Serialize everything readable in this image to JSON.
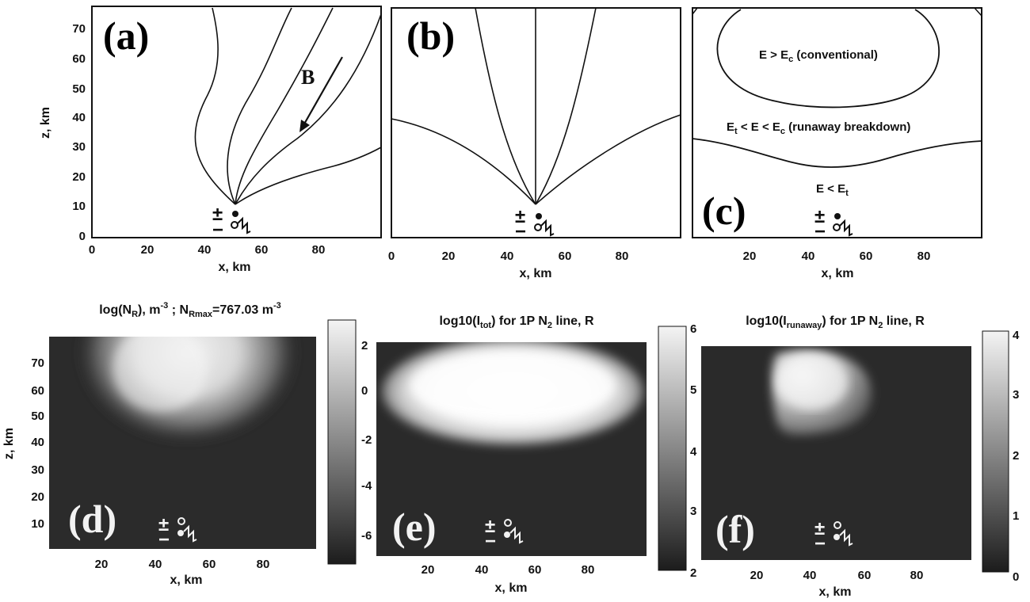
{
  "panels": {
    "a": {
      "label": "(a)",
      "field_label": "B"
    },
    "b": {
      "label": "(b)"
    },
    "c": {
      "label": "(c)",
      "region_top": "E > E",
      "region_top_sub": "c",
      "region_top_tail": " (conventional)",
      "region_mid_1": "E",
      "region_mid_1_sub": "t",
      "region_mid_2": " < E < E",
      "region_mid_2_sub": "c",
      "region_mid_tail": " (runaway breakdown)",
      "region_bot": "E < E",
      "region_bot_sub": "t"
    },
    "d": {
      "label": "(d)",
      "title_1": "log(N",
      "title_1_sub": "R",
      "title_2": "), m",
      "title_2_sup": "-3",
      "title_3": " ; N",
      "title_3_sub": "Rmax",
      "title_4": "=767.03 m",
      "title_4_sup": "-3",
      "colorbar_ticks": [
        "2",
        "0",
        "-2",
        "-4",
        "-6"
      ]
    },
    "e": {
      "label": "(e)",
      "title_1": "log10(I",
      "title_1_sub": "tot",
      "title_2": ") for 1P N",
      "title_2_sub": "2",
      "title_3": " line,   R",
      "colorbar_ticks": [
        "6",
        "5",
        "4",
        "3",
        "2"
      ]
    },
    "f": {
      "label": "(f)",
      "title_1": "log10(I",
      "title_1_sub": "runaway",
      "title_2": ") for 1P N",
      "title_2_sub": "2",
      "title_3": " line,   R",
      "colorbar_ticks": [
        "4",
        "3",
        "2",
        "1",
        "0"
      ]
    }
  },
  "axes": {
    "x_label": "x, km",
    "z_label": "z, km",
    "x_ticks_full": [
      "0",
      "20",
      "40",
      "60",
      "80"
    ],
    "x_ticks_short": [
      "20",
      "40",
      "60",
      "80"
    ],
    "z_ticks_top": [
      "70",
      "60",
      "50",
      "40",
      "30",
      "20",
      "10",
      "0"
    ],
    "z_ticks_bottom": [
      "70",
      "60",
      "50",
      "40",
      "30",
      "20",
      "10"
    ]
  },
  "source_symbol": {
    "plus_minus": "±",
    "minus": "−"
  }
}
